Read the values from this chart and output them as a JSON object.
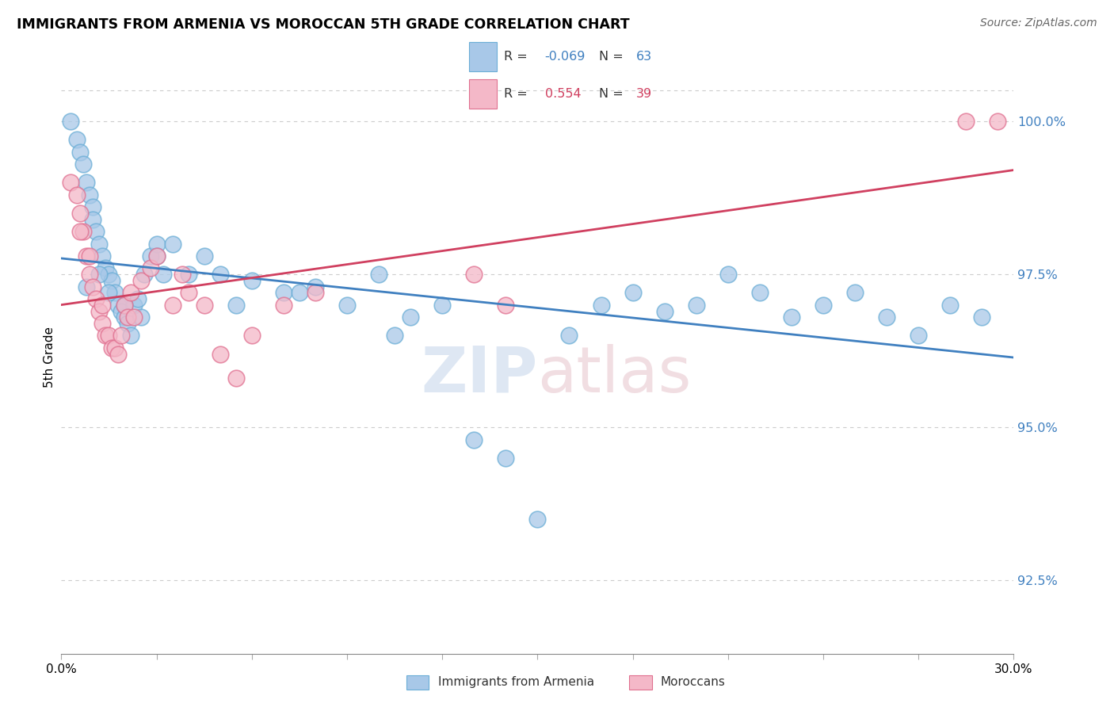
{
  "title": "IMMIGRANTS FROM ARMENIA VS MOROCCAN 5TH GRADE CORRELATION CHART",
  "source": "Source: ZipAtlas.com",
  "ylabel": "5th Grade",
  "xlim": [
    0.0,
    30.0
  ],
  "ylim": [
    91.3,
    101.0
  ],
  "y_ticks": [
    92.5,
    95.0,
    97.5,
    100.0
  ],
  "y_tick_labels": [
    "92.5%",
    "95.0%",
    "97.5%",
    "100.0%"
  ],
  "x_ticks": [
    0,
    3,
    6,
    9,
    12,
    15,
    18,
    21,
    24,
    27,
    30
  ],
  "x_tick_labels_show": [
    "0.0%",
    "",
    "",
    "",
    "",
    "",
    "",
    "",
    "",
    "",
    "30.0%"
  ],
  "legend_R1": "-0.069",
  "legend_N1": "63",
  "legend_R2": "0.554",
  "legend_N2": "39",
  "blue_color": "#a8c8e8",
  "blue_edge_color": "#6baed6",
  "pink_color": "#f4b8c8",
  "pink_edge_color": "#e07090",
  "blue_line_color": "#4080c0",
  "pink_line_color": "#d04060",
  "blue_x": [
    0.3,
    0.5,
    0.6,
    0.7,
    0.8,
    0.9,
    1.0,
    1.0,
    1.1,
    1.2,
    1.3,
    1.4,
    1.5,
    1.6,
    1.7,
    1.8,
    1.9,
    2.0,
    2.1,
    2.2,
    2.3,
    2.4,
    2.6,
    2.8,
    3.0,
    3.2,
    3.5,
    4.0,
    4.5,
    5.0,
    6.0,
    7.0,
    8.0,
    9.0,
    10.0,
    11.0,
    12.0,
    13.0,
    14.0,
    15.0,
    16.0,
    17.0,
    18.0,
    19.0,
    20.0,
    21.0,
    22.0,
    23.0,
    24.0,
    25.0,
    26.0,
    27.0,
    28.0,
    29.0,
    1.5,
    2.0,
    2.5,
    0.8,
    1.2,
    3.0,
    5.5,
    7.5,
    10.5
  ],
  "blue_y": [
    100.0,
    99.7,
    99.5,
    99.3,
    99.0,
    98.8,
    98.6,
    98.4,
    98.2,
    98.0,
    97.8,
    97.6,
    97.5,
    97.4,
    97.2,
    97.0,
    96.9,
    96.8,
    96.7,
    96.5,
    97.0,
    97.1,
    97.5,
    97.8,
    98.0,
    97.5,
    98.0,
    97.5,
    97.8,
    97.5,
    97.4,
    97.2,
    97.3,
    97.0,
    97.5,
    96.8,
    97.0,
    94.8,
    94.5,
    93.5,
    96.5,
    97.0,
    97.2,
    96.9,
    97.0,
    97.5,
    97.2,
    96.8,
    97.0,
    97.2,
    96.8,
    96.5,
    97.0,
    96.8,
    97.2,
    97.0,
    96.8,
    97.3,
    97.5,
    97.8,
    97.0,
    97.2,
    96.5
  ],
  "pink_x": [
    0.3,
    0.5,
    0.6,
    0.7,
    0.8,
    0.9,
    1.0,
    1.1,
    1.2,
    1.3,
    1.4,
    1.5,
    1.6,
    1.7,
    1.8,
    2.0,
    2.2,
    2.5,
    2.8,
    3.0,
    3.5,
    4.0,
    5.0,
    6.0,
    7.0,
    2.1,
    1.9,
    2.3,
    3.8,
    4.5,
    5.5,
    8.0,
    13.0,
    14.0,
    28.5,
    29.5,
    0.6,
    0.9,
    1.3
  ],
  "pink_y": [
    99.0,
    98.8,
    98.5,
    98.2,
    97.8,
    97.5,
    97.3,
    97.1,
    96.9,
    96.7,
    96.5,
    96.5,
    96.3,
    96.3,
    96.2,
    97.0,
    97.2,
    97.4,
    97.6,
    97.8,
    97.0,
    97.2,
    96.2,
    96.5,
    97.0,
    96.8,
    96.5,
    96.8,
    97.5,
    97.0,
    95.8,
    97.2,
    97.5,
    97.0,
    100.0,
    100.0,
    98.2,
    97.8,
    97.0
  ]
}
